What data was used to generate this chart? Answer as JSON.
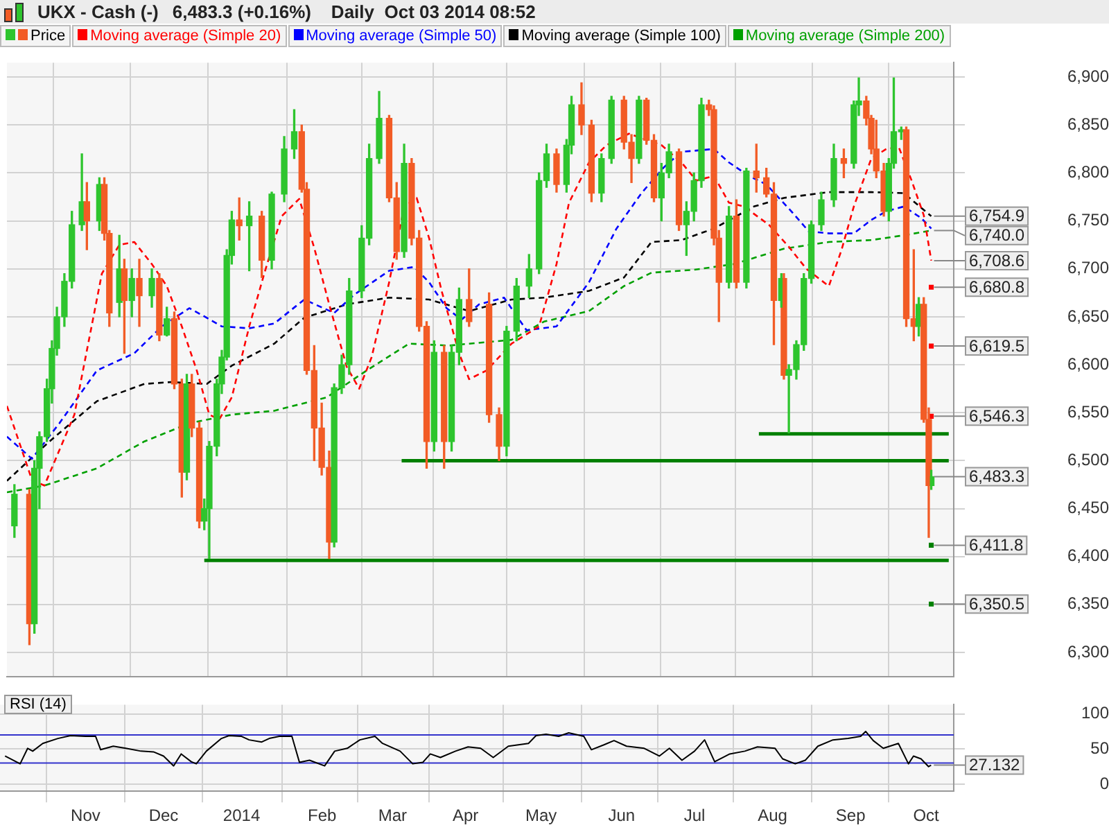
{
  "chart_data": [
    {
      "type": "candlestick",
      "title": "UKX - Cash (-)",
      "subtitle": "6,483.3 (+0.16%)    Daily  Oct 03 2014 08:52",
      "legend": "top left",
      "grid": true,
      "tick_labels": "y",
      "xlim": [
        "2013-09-28",
        "2014-10-12"
      ],
      "xticks": [
        {
          "value": "2013-11-01",
          "label": null
        },
        {
          "value": "2013-12-02",
          "label": null
        },
        {
          "value": "2014-01-02",
          "label": null
        },
        {
          "value": "2014-02-03",
          "label": null
        },
        {
          "value": "2014-03-03",
          "label": null
        },
        {
          "value": "2014-04-01",
          "label": null
        },
        {
          "value": "2014-05-01",
          "label": null
        },
        {
          "value": "2014-06-02",
          "label": null
        },
        {
          "value": "2014-07-01",
          "label": null
        },
        {
          "value": "2014-08-01",
          "label": null
        },
        {
          "value": "2014-09-01",
          "label": null
        },
        {
          "value": "2014-10-01",
          "label": null
        }
      ],
      "ylim": [
        6275,
        6915
      ],
      "yticks": [
        {
          "value": 6300,
          "label": "6,300"
        },
        {
          "value": 6350,
          "label": "6,350"
        },
        {
          "value": 6400,
          "label": "6,400"
        },
        {
          "value": 6450,
          "label": "6,450"
        },
        {
          "value": 6500,
          "label": "6,500"
        },
        {
          "value": 6550,
          "label": "6,550"
        },
        {
          "value": 6600,
          "label": "6,600"
        },
        {
          "value": 6650,
          "label": "6,650"
        },
        {
          "value": 6700,
          "label": "6,700"
        },
        {
          "value": 6750,
          "label": "6,750"
        },
        {
          "value": 6800,
          "label": "6,800"
        },
        {
          "value": 6850,
          "label": "6,850"
        },
        {
          "value": 6900,
          "label": "6,900"
        }
      ],
      "series": [
        {
          "name": "Price",
          "type": "candlestick",
          "x": [
            "2013-10-01",
            "2013-10-07",
            "2013-10-09",
            "2013-10-11",
            "2013-10-14",
            "2013-10-16",
            "2013-10-18",
            "2013-10-21",
            "2013-10-24",
            "2013-10-28",
            "2013-10-30",
            "2013-11-04",
            "2013-11-06",
            "2013-11-08",
            "2013-11-12",
            "2013-11-14",
            "2013-11-17",
            "2013-11-20",
            "2013-11-25",
            "2013-11-28",
            "2013-12-01",
            "2013-12-04",
            "2013-12-07",
            "2013-12-09",
            "2013-12-11",
            "2013-12-14",
            "2013-12-16",
            "2013-12-18",
            "2013-12-21",
            "2013-12-23",
            "2013-12-25",
            "2013-12-27",
            "2013-12-30",
            "2014-01-03",
            "2014-01-08",
            "2014-01-12",
            "2014-01-17",
            "2014-01-21",
            "2014-01-24",
            "2014-01-26",
            "2014-01-29",
            "2014-02-01",
            "2014-02-04",
            "2014-02-06",
            "2014-02-09",
            "2014-02-12",
            "2014-02-17",
            "2014-02-20",
            "2014-02-24",
            "2014-02-28",
            "2014-03-03",
            "2014-03-06",
            "2014-03-09",
            "2014-03-12",
            "2014-03-15",
            "2014-03-18",
            "2014-03-22",
            "2014-03-25",
            "2014-03-28",
            "2014-04-01",
            "2014-04-09",
            "2014-04-13",
            "2014-04-16",
            "2014-04-20",
            "2014-04-25",
            "2014-04-29",
            "2014-05-02",
            "2014-05-06",
            "2014-05-10",
            "2014-05-12",
            "2014-05-16",
            "2014-05-20",
            "2014-05-24",
            "2014-05-28",
            "2014-06-02",
            "2014-06-05",
            "2014-06-08",
            "2014-06-11",
            "2014-06-14",
            "2014-06-17",
            "2014-06-20",
            "2014-06-24",
            "2014-06-27",
            "2014-06-30",
            "2014-07-03",
            "2014-07-06",
            "2014-07-08",
            "2014-07-10",
            "2014-07-14",
            "2014-07-17",
            "2014-07-21",
            "2014-07-25",
            "2014-07-29",
            "2014-08-01",
            "2014-08-04",
            "2014-08-05",
            "2014-08-07",
            "2014-08-10",
            "2014-08-13",
            "2014-08-16",
            "2014-08-20",
            "2014-08-25",
            "2014-08-29",
            "2014-09-02",
            "2014-09-04",
            "2014-09-07",
            "2014-09-09",
            "2014-09-11",
            "2014-09-14",
            "2014-09-16",
            "2014-09-18",
            "2014-09-21",
            "2014-09-23",
            "2014-09-26",
            "2014-09-28",
            "2014-09-30",
            "2014-10-02",
            "2014-10-03"
          ],
          "ohlc": [
            [
              6432,
              6475,
              6420,
              6465
            ],
            [
              6465,
              6470,
              6308,
              6330
            ],
            [
              6330,
              6500,
              6320,
              6492
            ],
            [
              6492,
              6530,
              6450,
              6525
            ],
            [
              6525,
              6585,
              6520,
              6575
            ],
            [
              6575,
              6625,
              6560,
              6617
            ],
            [
              6617,
              6660,
              6610,
              6650
            ],
            [
              6650,
              6695,
              6640,
              6687
            ],
            [
              6687,
              6760,
              6680,
              6746
            ],
            [
              6746,
              6820,
              6740,
              6770
            ],
            [
              6770,
              6790,
              6720,
              6750
            ],
            [
              6750,
              6795,
              6740,
              6788
            ],
            [
              6788,
              6795,
              6730,
              6737
            ],
            [
              6737,
              6740,
              6640,
              6654
            ],
            [
              6665,
              6735,
              6650,
              6700
            ],
            [
              6700,
              6710,
              6612,
              6667
            ],
            [
              6667,
              6700,
              6650,
              6690
            ],
            [
              6690,
              6710,
              6640,
              6672
            ],
            [
              6672,
              6700,
              6660,
              6690
            ],
            [
              6690,
              6695,
              6625,
              6631
            ],
            [
              6631,
              6660,
              6630,
              6648
            ],
            [
              6648,
              6655,
              6575,
              6580
            ],
            [
              6580,
              6585,
              6462,
              6488
            ],
            [
              6488,
              6590,
              6480,
              6580
            ],
            [
              6580,
              6590,
              6525,
              6534
            ],
            [
              6534,
              6540,
              6430,
              6437
            ],
            [
              6437,
              6460,
              6428,
              6450
            ],
            [
              6450,
              6520,
              6398,
              6515
            ],
            [
              6515,
              6585,
              6505,
              6580
            ],
            [
              6580,
              6615,
              6570,
              6608
            ],
            [
              6608,
              6720,
              6605,
              6714
            ],
            [
              6714,
              6760,
              6705,
              6751
            ],
            [
              6751,
              6774,
              6730,
              6745
            ],
            [
              6745,
              6770,
              6698,
              6755
            ],
            [
              6755,
              6760,
              6691,
              6709
            ],
            [
              6709,
              6780,
              6700,
              6778
            ],
            [
              6778,
              6838,
              6770,
              6825
            ],
            [
              6825,
              6866,
              6815,
              6843
            ],
            [
              6843,
              6850,
              6780,
              6783
            ],
            [
              6783,
              6790,
              6590,
              6594
            ],
            [
              6594,
              6620,
              6500,
              6534
            ],
            [
              6534,
              6560,
              6485,
              6493
            ],
            [
              6493,
              6510,
              6398,
              6415
            ],
            [
              6415,
              6580,
              6410,
              6576
            ],
            [
              6576,
              6610,
              6570,
              6600
            ],
            [
              6600,
              6690,
              6590,
              6677
            ],
            [
              6677,
              6745,
              6670,
              6732
            ],
            [
              6732,
              6830,
              6725,
              6815
            ],
            [
              6815,
              6885,
              6810,
              6857
            ],
            [
              6857,
              6860,
              6770,
              6774
            ],
            [
              6774,
              6790,
              6710,
              6718
            ],
            [
              6718,
              6830,
              6712,
              6810
            ],
            [
              6810,
              6815,
              6725,
              6732
            ],
            [
              6732,
              6740,
              6635,
              6640
            ],
            [
              6640,
              6645,
              6492,
              6520
            ],
            [
              6520,
              6625,
              6510,
              6613
            ],
            [
              6613,
              6620,
              6492,
              6520
            ],
            [
              6520,
              6620,
              6510,
              6613
            ],
            [
              6613,
              6680,
              6600,
              6668
            ],
            [
              6668,
              6700,
              6640,
              6645
            ],
            [
              6663,
              6675,
              6540,
              6548
            ],
            [
              6548,
              6555,
              6500,
              6515
            ],
            [
              6515,
              6640,
              6505,
              6635
            ],
            [
              6635,
              6690,
              6625,
              6682
            ],
            [
              6682,
              6715,
              6670,
              6700
            ],
            [
              6700,
              6800,
              6695,
              6792
            ],
            [
              6792,
              6830,
              6785,
              6820
            ],
            [
              6820,
              6825,
              6780,
              6788
            ],
            [
              6788,
              6835,
              6780,
              6829
            ],
            [
              6829,
              6880,
              6820,
              6871
            ],
            [
              6871,
              6894,
              6840,
              6850
            ],
            [
              6850,
              6855,
              6770,
              6779
            ],
            [
              6779,
              6820,
              6770,
              6815
            ],
            [
              6815,
              6880,
              6810,
              6876
            ],
            [
              6876,
              6880,
              6825,
              6832
            ],
            [
              6832,
              6840,
              6790,
              6815
            ],
            [
              6815,
              6880,
              6810,
              6876
            ],
            [
              6876,
              6878,
              6830,
              6834
            ],
            [
              6834,
              6840,
              6770,
              6774
            ],
            [
              6774,
              6810,
              6750,
              6800
            ],
            [
              6800,
              6830,
              6795,
              6822
            ],
            [
              6822,
              6825,
              6740,
              6746
            ],
            [
              6746,
              6770,
              6714,
              6760
            ],
            [
              6760,
              6800,
              6750,
              6792
            ],
            [
              6792,
              6878,
              6785,
              6871
            ],
            [
              6871,
              6876,
              6860,
              6866
            ],
            [
              6866,
              6870,
              6725,
              6732
            ],
            [
              6732,
              6740,
              6645,
              6686
            ],
            [
              6686,
              6765,
              6680,
              6755
            ],
            [
              6755,
              6772,
              6680,
              6686
            ],
            [
              6686,
              6805,
              6680,
              6802
            ],
            [
              6802,
              6830,
              6780,
              6795
            ],
            [
              6795,
              6805,
              6775,
              6778
            ],
            [
              6778,
              6790,
              6621,
              6667
            ],
            [
              6667,
              6695,
              6660,
              6690
            ],
            [
              6690,
              6695,
              6585,
              6589
            ],
            [
              6589,
              6600,
              6529,
              6595
            ],
            [
              6595,
              6625,
              6585,
              6621
            ],
            [
              6621,
              6695,
              6615,
              6690
            ],
            [
              6690,
              6750,
              6685,
              6746
            ],
            [
              6746,
              6780,
              6740,
              6772
            ],
            [
              6772,
              6830,
              6765,
              6815
            ],
            [
              6815,
              6825,
              6795,
              6810
            ],
            [
              6810,
              6875,
              6805,
              6871
            ],
            [
              6871,
              6899,
              6860,
              6875
            ],
            [
              6875,
              6880,
              6850,
              6857
            ],
            [
              6857,
              6860,
              6820,
              6825
            ],
            [
              6825,
              6855,
              6795,
              6802
            ],
            [
              6802,
              6810,
              6755,
              6760
            ],
            [
              6760,
              6815,
              6750,
              6810
            ],
            [
              6810,
              6899,
              6805,
              6843
            ],
            [
              6843,
              6848,
              6835,
              6845
            ],
            [
              6845,
              6848,
              6640,
              6648
            ],
            [
              6648,
              6720,
              6625,
              6640
            ],
            [
              6640,
              6670,
              6630,
              6663
            ],
            [
              6663,
              6670,
              6540,
              6543
            ],
            [
              6543,
              6555,
              6420,
              6474
            ],
            [
              6474,
              6490,
              6470,
              6483.3
            ]
          ],
          "colors": [
            "#2ec52e",
            "#f25c26",
            "#2ec52e",
            "#2ec52e",
            "#2ec52e",
            "#2ec52e",
            "#2ec52e",
            "#2ec52e",
            "#2ec52e",
            "#2ec52e",
            "#f25c26",
            "#2ec52e",
            "#f25c26",
            "#f25c26",
            "#2ec52e",
            "#f25c26",
            "#2ec52e",
            "#f25c26",
            "#2ec52e",
            "#f25c26",
            "#2ec52e",
            "#f25c26",
            "#f25c26",
            "#2ec52e",
            "#f25c26",
            "#f25c26",
            "#2ec52e",
            "#2ec52e",
            "#2ec52e",
            "#2ec52e",
            "#2ec52e",
            "#2ec52e",
            "#f25c26",
            "#2ec52e",
            "#f25c26",
            "#2ec52e",
            "#2ec52e",
            "#2ec52e",
            "#f25c26",
            "#f25c26",
            "#f25c26",
            "#f25c26",
            "#f25c26",
            "#2ec52e",
            "#2ec52e",
            "#2ec52e",
            "#2ec52e",
            "#2ec52e",
            "#2ec52e",
            "#f25c26",
            "#f25c26",
            "#2ec52e",
            "#f25c26",
            "#f25c26",
            "#f25c26",
            "#2ec52e",
            "#f25c26",
            "#2ec52e",
            "#2ec52e",
            "#f25c26",
            "#f25c26",
            "#f25c26",
            "#2ec52e",
            "#2ec52e",
            "#2ec52e",
            "#2ec52e",
            "#2ec52e",
            "#f25c26",
            "#2ec52e",
            "#2ec52e",
            "#f25c26",
            "#f25c26",
            "#2ec52e",
            "#2ec52e",
            "#f25c26",
            "#f25c26",
            "#2ec52e",
            "#f25c26",
            "#f25c26",
            "#2ec52e",
            "#2ec52e",
            "#f25c26",
            "#2ec52e",
            "#2ec52e",
            "#2ec52e",
            "#f25c26",
            "#f25c26",
            "#f25c26",
            "#2ec52e",
            "#f25c26",
            "#2ec52e",
            "#f25c26",
            "#f25c26",
            "#f25c26",
            "#2ec52e",
            "#f25c26",
            "#2ec52e",
            "#2ec52e",
            "#2ec52e",
            "#2ec52e",
            "#2ec52e",
            "#2ec52e",
            "#f25c26",
            "#2ec52e",
            "#2ec52e",
            "#f25c26",
            "#f25c26",
            "#f25c26",
            "#f25c26",
            "#2ec52e",
            "#2ec52e",
            "#2ec52e",
            "#f25c26",
            "#f25c26",
            "#2ec52e",
            "#f25c26",
            "#f25c26",
            "#2ec52e"
          ]
        },
        {
          "name": "Moving average (Simple 20)",
          "type": "line",
          "color": "#ff0000",
          "line_style": "dashed",
          "x": [
            "2013-09-28",
            "2013-10-08",
            "2013-10-13",
            "2013-10-25",
            "2013-11-05",
            "2013-11-12",
            "2013-11-18",
            "2013-11-25",
            "2013-12-01",
            "2013-12-07",
            "2013-12-13",
            "2013-12-18",
            "2013-12-22",
            "2013-12-27",
            "2014-01-03",
            "2014-01-09",
            "2014-01-16",
            "2014-01-23",
            "2014-01-29",
            "2014-02-04",
            "2014-02-11",
            "2014-02-16",
            "2014-02-21",
            "2014-02-28",
            "2014-03-06",
            "2014-03-11",
            "2014-03-16",
            "2014-03-21",
            "2014-03-28",
            "2014-04-01",
            "2014-04-08",
            "2014-04-18",
            "2014-04-29",
            "2014-05-06",
            "2014-05-11",
            "2014-05-19",
            "2014-05-26",
            "2014-06-04",
            "2014-06-17",
            "2014-06-25",
            "2014-07-01",
            "2014-07-08",
            "2014-07-14",
            "2014-07-20",
            "2014-07-30",
            "2014-08-07",
            "2014-08-14",
            "2014-08-23",
            "2014-08-28",
            "2014-09-02",
            "2014-09-09",
            "2014-09-15",
            "2014-09-20",
            "2014-09-25",
            "2014-09-30",
            "2014-10-03"
          ],
          "values": [
            6557,
            6480,
            6474,
            6548,
            6695,
            6725,
            6728,
            6705,
            6682,
            6640,
            6594,
            6548,
            6543,
            6566,
            6640,
            6695,
            6755,
            6773,
            6722,
            6663,
            6598,
            6575,
            6608,
            6686,
            6765,
            6774,
            6732,
            6677,
            6612,
            6585,
            6594,
            6622,
            6640,
            6705,
            6769,
            6811,
            6829,
            6841,
            6829,
            6811,
            6792,
            6797,
            6769,
            6765,
            6746,
            6723,
            6700,
            6682,
            6719,
            6765,
            6815,
            6825,
            6827,
            6793,
            6756,
            6708.6
          ]
        },
        {
          "name": "Moving average (Simple 50)",
          "type": "line",
          "color": "#0000ff",
          "line_style": "dashed",
          "x": [
            "2013-09-28",
            "2013-10-08",
            "2013-10-19",
            "2013-11-03",
            "2013-11-18",
            "2013-11-29",
            "2013-12-10",
            "2013-12-17",
            "2013-12-23",
            "2014-01-03",
            "2014-01-13",
            "2014-01-25",
            "2014-02-06",
            "2014-02-14",
            "2014-02-28",
            "2014-03-10",
            "2014-03-16",
            "2014-03-23",
            "2014-03-29",
            "2014-04-05",
            "2014-04-15",
            "2014-04-24",
            "2014-05-06",
            "2014-05-19",
            "2014-05-30",
            "2014-06-09",
            "2014-06-18",
            "2014-06-25",
            "2014-07-08",
            "2014-07-14",
            "2014-07-22",
            "2014-07-29",
            "2014-08-08",
            "2014-08-15",
            "2014-08-23",
            "2014-09-02",
            "2014-09-09",
            "2014-09-15",
            "2014-09-22",
            "2014-09-29",
            "2014-10-03"
          ],
          "values": [
            6525,
            6502,
            6539,
            6594,
            6612,
            6640,
            6659,
            6649,
            6640,
            6638,
            6643,
            6668,
            6654,
            6673,
            6698,
            6702,
            6686,
            6659,
            6647,
            6663,
            6670,
            6636,
            6640,
            6686,
            6742,
            6779,
            6806,
            6822,
            6825,
            6811,
            6797,
            6788,
            6760,
            6739,
            6737,
            6737,
            6751,
            6760,
            6765,
            6753,
            6742
          ]
        },
        {
          "name": "Moving average (Simple 100)",
          "type": "line",
          "color": "#000000",
          "line_style": "dashed",
          "x": [
            "2013-09-28",
            "2013-10-15",
            "2013-11-03",
            "2013-11-22",
            "2013-12-03",
            "2013-12-17",
            "2013-12-27",
            "2014-01-13",
            "2014-01-25",
            "2014-02-11",
            "2014-02-28",
            "2014-03-16",
            "2014-04-01",
            "2014-04-18",
            "2014-05-01",
            "2014-05-19",
            "2014-06-02",
            "2014-06-13",
            "2014-06-25",
            "2014-07-08",
            "2014-07-24",
            "2014-08-05",
            "2014-08-23",
            "2014-09-09",
            "2014-09-22",
            "2014-10-03"
          ],
          "values": [
            6479,
            6520,
            6562,
            6580,
            6582,
            6580,
            6599,
            6622,
            6649,
            6663,
            6670,
            6668,
            6656,
            6668,
            6670,
            6677,
            6691,
            6728,
            6730,
            6742,
            6765,
            6774,
            6780,
            6780,
            6779,
            6754.9
          ]
        },
        {
          "name": "Moving average (Simple 200)",
          "type": "line",
          "color": "#00a000",
          "line_style": "dashed",
          "x": [
            "2013-09-28",
            "2013-10-13",
            "2013-11-03",
            "2013-11-22",
            "2013-12-10",
            "2013-12-27",
            "2014-01-13",
            "2014-02-03",
            "2014-02-19",
            "2014-03-08",
            "2014-03-24",
            "2014-04-18",
            "2014-05-01",
            "2014-05-19",
            "2014-06-02",
            "2014-06-13",
            "2014-06-30",
            "2014-07-16",
            "2014-08-05",
            "2014-08-23",
            "2014-09-09",
            "2014-09-22",
            "2014-10-03"
          ],
          "values": [
            6467,
            6474,
            6492,
            6520,
            6539,
            6548,
            6552,
            6566,
            6594,
            6622,
            6620,
            6626,
            6645,
            6656,
            6682,
            6696,
            6699,
            6705,
            6721,
            6728,
            6730,
            6735,
            6740.0
          ]
        },
        {
          "type": "line",
          "color": "#008000",
          "line_style": "solid",
          "x": [
            "2013-12-16",
            "2014-10-10"
          ],
          "values": [
            6396,
            6396
          ]
        },
        {
          "type": "line",
          "color": "#008000",
          "line_style": "solid",
          "x": [
            "2014-03-05",
            "2014-10-10"
          ],
          "values": [
            6500,
            6500
          ]
        },
        {
          "type": "line",
          "color": "#008000",
          "line_style": "solid",
          "x": [
            "2014-07-26",
            "2014-10-10"
          ],
          "values": [
            6528,
            6528
          ]
        },
        {
          "type": "scatter",
          "color": "#ff0000",
          "marker": "square",
          "x": [
            "2014-10-03",
            "2014-10-03",
            "2014-10-03"
          ],
          "values": [
            6680.8,
            6619.5,
            6546.3
          ]
        },
        {
          "type": "scatter",
          "color": "#008000",
          "marker": "square",
          "x": [
            "2014-10-03",
            "2014-10-03"
          ],
          "values": [
            6411.8,
            6350.5
          ]
        }
      ],
      "annotations": [
        {
          "text": "6,754.9",
          "x": "2014-10-03",
          "y": 6754.9
        },
        {
          "text": "6,740.0",
          "x": "2014-10-03",
          "y": 6740.0
        },
        {
          "text": "6,708.6",
          "x": "2014-10-03",
          "y": 6708.6
        },
        {
          "text": "6,680.8",
          "x": "2014-10-03",
          "y": 6680.8
        },
        {
          "text": "6,619.5",
          "x": "2014-10-03",
          "y": 6619.5
        },
        {
          "text": "6,546.3",
          "x": "2014-10-03",
          "y": 6546.3
        },
        {
          "text": "6,483.3",
          "x": "2014-10-03",
          "y": 6483.3
        },
        {
          "text": "6,411.8",
          "x": "2014-10-03",
          "y": 6411.8
        },
        {
          "text": "6,350.5",
          "x": "2014-10-03",
          "y": 6350.5
        }
      ]
    },
    {
      "type": "line",
      "title": "RSI (14)",
      "grid": true,
      "color": "#000000",
      "xlim": [
        "2013-09-28",
        "2014-10-12"
      ],
      "xticks": [
        {
          "value": "2013-11-01",
          "label": "Nov"
        },
        {
          "value": "2013-12-02",
          "label": "Dec"
        },
        {
          "value": "2014-01-02",
          "label": "2014"
        },
        {
          "value": "2014-02-03",
          "label": "Feb"
        },
        {
          "value": "2014-03-03",
          "label": "Mar"
        },
        {
          "value": "2014-04-01",
          "label": "Apr"
        },
        {
          "value": "2014-05-01",
          "label": "May"
        },
        {
          "value": "2014-06-02",
          "label": "Jun"
        },
        {
          "value": "2014-07-01",
          "label": "Jul"
        },
        {
          "value": "2014-08-01",
          "label": "Aug"
        },
        {
          "value": "2014-09-01",
          "label": "Sep"
        },
        {
          "value": "2014-10-01",
          "label": "Oct"
        }
      ],
      "ylim": [
        -10,
        113
      ],
      "yticks": [
        0,
        50,
        100
      ],
      "x": [
        "2013-09-30",
        "2013-10-06",
        "2013-10-09",
        "2013-10-11",
        "2013-10-15",
        "2013-10-21",
        "2013-10-26",
        "2013-11-01",
        "2013-11-05",
        "2013-11-07",
        "2013-11-12",
        "2013-11-17",
        "2013-11-23",
        "2013-11-28",
        "2013-12-02",
        "2013-12-06",
        "2013-12-09",
        "2013-12-13",
        "2013-12-15",
        "2013-12-19",
        "2013-12-25",
        "2013-12-28",
        "2014-01-02",
        "2014-01-05",
        "2014-01-10",
        "2014-01-13",
        "2014-01-17",
        "2014-01-22",
        "2014-01-25",
        "2014-01-29",
        "2014-02-04",
        "2014-02-08",
        "2014-02-13",
        "2014-02-18",
        "2014-02-24",
        "2014-02-27",
        "2014-03-06",
        "2014-03-11",
        "2014-03-15",
        "2014-03-18",
        "2014-03-22",
        "2014-03-28",
        "2014-04-02",
        "2014-04-07",
        "2014-04-12",
        "2014-04-18",
        "2014-04-26",
        "2014-04-29",
        "2014-05-03",
        "2014-05-08",
        "2014-05-12",
        "2014-05-18",
        "2014-05-21",
        "2014-05-26",
        "2014-05-30",
        "2014-06-04",
        "2014-06-11",
        "2014-06-17",
        "2014-06-21",
        "2014-06-26",
        "2014-07-01",
        "2014-07-05",
        "2014-07-09",
        "2014-07-15",
        "2014-07-21",
        "2014-07-26",
        "2014-08-02",
        "2014-08-05",
        "2014-08-10",
        "2014-08-14",
        "2014-08-19",
        "2014-08-25",
        "2014-08-31",
        "2014-09-05",
        "2014-09-07",
        "2014-09-10",
        "2014-09-14",
        "2014-09-20",
        "2014-09-24",
        "2014-09-26",
        "2014-09-29",
        "2014-10-02",
        "2014-10-03"
      ],
      "values": [
        40,
        29,
        51,
        47,
        58,
        65,
        69,
        68,
        68,
        49,
        54,
        51,
        47,
        46,
        40,
        26,
        43,
        32,
        29,
        47,
        65,
        69,
        68,
        63,
        60,
        65,
        68,
        68,
        31,
        34,
        26,
        47,
        51,
        63,
        68,
        58,
        47,
        29,
        31,
        43,
        38,
        47,
        53,
        51,
        38,
        54,
        58,
        69,
        71,
        68,
        73,
        68,
        49,
        56,
        62,
        54,
        51,
        40,
        51,
        34,
        47,
        63,
        32,
        43,
        47,
        53,
        51,
        36,
        29,
        34,
        54,
        63,
        65,
        68,
        75,
        62,
        51,
        58,
        29,
        40,
        36,
        25,
        27.132
      ],
      "ref_lines": [
        {
          "axis": "y",
          "value": 70,
          "color": "#3333cc"
        },
        {
          "axis": "y",
          "value": 30,
          "color": "#3333cc"
        }
      ],
      "annotations": [
        {
          "text": "27.132",
          "x": "2014-10-03",
          "y": 27.132
        }
      ]
    }
  ]
}
